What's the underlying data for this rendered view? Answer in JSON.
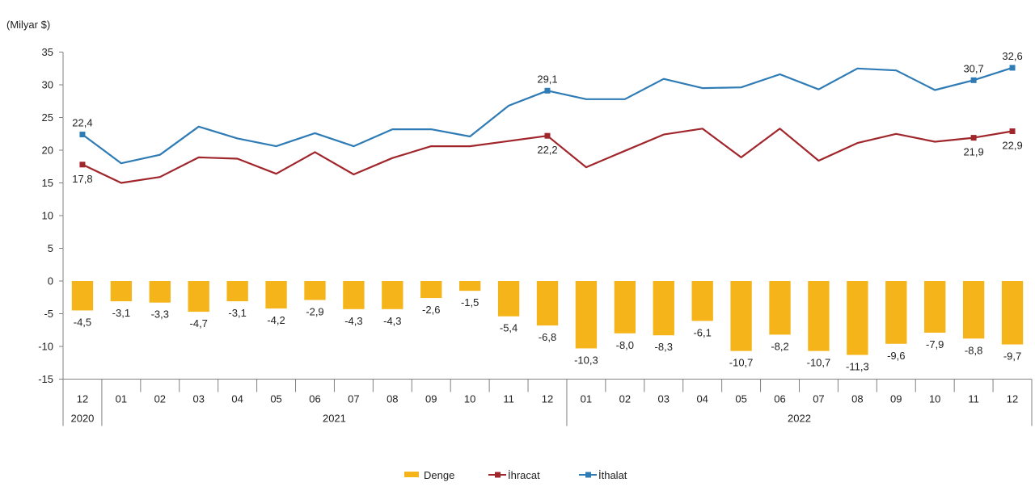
{
  "chart_data": {
    "type": "bar+line",
    "unit_label": "(Milyar $)",
    "categories": [
      "12",
      "01",
      "02",
      "03",
      "04",
      "05",
      "06",
      "07",
      "08",
      "09",
      "10",
      "11",
      "12",
      "01",
      "02",
      "03",
      "04",
      "05",
      "06",
      "07",
      "08",
      "09",
      "10",
      "11",
      "12"
    ],
    "years": [
      {
        "label": "2020",
        "from": 0,
        "to": 0
      },
      {
        "label": "2021",
        "from": 1,
        "to": 12
      },
      {
        "label": "2022",
        "from": 13,
        "to": 24
      }
    ],
    "yticks": [
      "35",
      "30",
      "25",
      "20",
      "15",
      "10",
      "5",
      "0",
      "-5",
      "-10",
      "-15"
    ],
    "ylim": [
      -15,
      35
    ],
    "series": [
      {
        "name": "Denge",
        "kind": "bar",
        "color": "#F5B51A",
        "values": [
          -4.5,
          -3.1,
          -3.3,
          -4.7,
          -3.1,
          -4.2,
          -2.9,
          -4.3,
          -4.3,
          -2.6,
          -1.5,
          -5.4,
          -6.8,
          -10.3,
          -8.0,
          -8.3,
          -6.1,
          -10.7,
          -8.2,
          -10.7,
          -11.3,
          -9.6,
          -7.9,
          -8.8,
          -9.7
        ],
        "labels": [
          "-4,5",
          "-3,1",
          "-3,3",
          "-4,7",
          "-3,1",
          "-4,2",
          "-2,9",
          "-4,3",
          "-4,3",
          "-2,6",
          "-1,5",
          "-5,4",
          "-6,8",
          "-10,3",
          "-8,0",
          "-8,3",
          "-6,1",
          "-10,7",
          "-8,2",
          "-10,7",
          "-11,3",
          "-9,6",
          "-7,9",
          "-8,8",
          "-9,7"
        ]
      },
      {
        "name": "İhracat",
        "kind": "line",
        "color": "#A0262C",
        "values": [
          17.8,
          15.0,
          15.9,
          18.9,
          18.7,
          16.4,
          19.7,
          16.3,
          18.8,
          20.6,
          20.6,
          21.4,
          22.2,
          17.4,
          19.9,
          22.4,
          23.3,
          18.9,
          23.3,
          18.4,
          21.1,
          22.5,
          21.3,
          21.9,
          22.9
        ],
        "markers": [
          0,
          12,
          23,
          24
        ],
        "marked_labels": [
          {
            "index": 0,
            "text": "17,8",
            "pos": "below"
          },
          {
            "index": 12,
            "text": "22,2",
            "pos": "below"
          },
          {
            "index": 23,
            "text": "21,9",
            "pos": "below"
          },
          {
            "index": 24,
            "text": "22,9",
            "pos": "below"
          }
        ]
      },
      {
        "name": "İthalat",
        "kind": "line",
        "color": "#2E7BB5",
        "values": [
          22.4,
          18.0,
          19.3,
          23.6,
          21.8,
          20.6,
          22.6,
          20.6,
          23.2,
          23.2,
          22.1,
          26.8,
          29.1,
          27.8,
          27.8,
          30.9,
          29.5,
          29.6,
          31.6,
          29.3,
          32.5,
          32.2,
          29.2,
          30.7,
          32.6
        ],
        "markers": [
          0,
          12,
          23,
          24
        ],
        "marked_labels": [
          {
            "index": 0,
            "text": "22,4",
            "pos": "above"
          },
          {
            "index": 12,
            "text": "29,1",
            "pos": "above"
          },
          {
            "index": 23,
            "text": "30,7",
            "pos": "above"
          },
          {
            "index": 24,
            "text": "32,6",
            "pos": "above"
          }
        ]
      }
    ],
    "legend": {
      "placement": "bottom-center",
      "entries": [
        "Denge",
        "İhracat",
        "İthalat"
      ]
    },
    "grid": false
  }
}
